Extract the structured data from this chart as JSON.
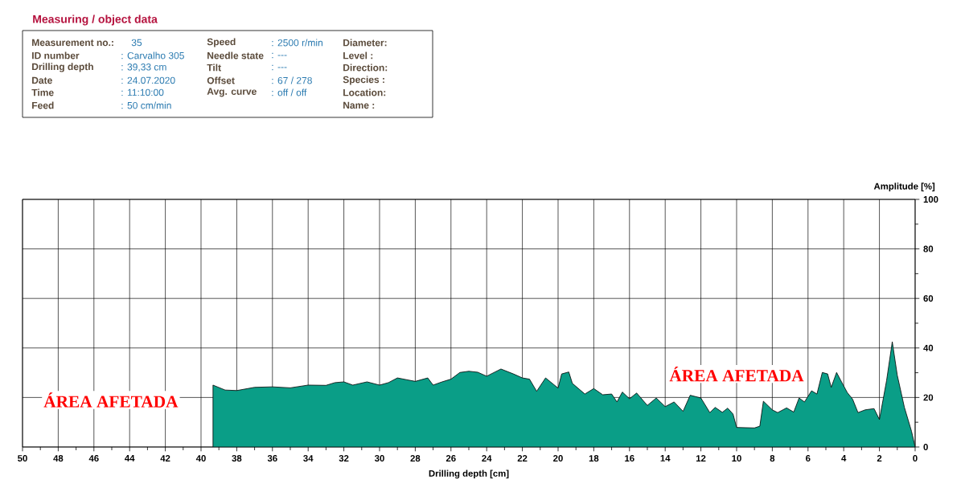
{
  "chart_data": {
    "type": "area",
    "title": "Measuring / object data",
    "xlabel": "Drilling depth [cm]",
    "ylabel": "Amplitude [%]",
    "x": [
      39.33,
      38.65,
      38,
      37,
      36,
      35,
      34,
      33,
      32.5,
      32,
      31.5,
      30.7,
      30,
      29.5,
      29,
      28,
      27.3,
      27,
      26.5,
      26,
      25.5,
      25,
      24.5,
      24,
      23.2,
      22.5,
      22,
      21.6,
      21.2,
      20.7,
      20,
      19.8,
      19.4,
      19.2,
      18.5,
      18,
      17.5,
      17,
      16.7,
      16.4,
      16,
      15.6,
      15,
      14.5,
      14,
      13.5,
      13,
      12.6,
      12,
      11.5,
      11.2,
      10.8,
      10.5,
      10.2,
      10,
      9,
      8.7,
      8.5,
      8,
      7.7,
      7.2,
      6.8,
      6.5,
      6.2,
      5.8,
      5.5,
      5.2,
      4.9,
      4.7,
      4.4,
      4.1,
      3.8,
      3.5,
      3.2,
      2.8,
      2.3,
      2,
      1.6,
      1.28,
      1,
      0.6,
      0.2,
      0
    ],
    "values": [
      25,
      23,
      22.8,
      24.1,
      24.3,
      23.9,
      25,
      24.9,
      26,
      26.3,
      25,
      26.3,
      25,
      26,
      27.9,
      26.5,
      27.9,
      25,
      26.3,
      27.4,
      30.1,
      30.6,
      30.2,
      28.6,
      31.5,
      29.5,
      27.9,
      27.4,
      22.5,
      27.9,
      23.8,
      29.5,
      30.3,
      25.7,
      21.4,
      23.6,
      21.1,
      21.4,
      18.2,
      22.2,
      19.5,
      21.8,
      16.8,
      19.8,
      16.3,
      18.2,
      14.4,
      20.9,
      19.8,
      13.9,
      16,
      14,
      15.7,
      13.3,
      7.9,
      7.7,
      8.4,
      18.5,
      15,
      13.9,
      15.8,
      14.1,
      19.8,
      18.2,
      22.7,
      21.4,
      30.1,
      29.5,
      24.1,
      30.1,
      26,
      22,
      19.3,
      13.9,
      15,
      15.5,
      11.1,
      26.8,
      42.5,
      29,
      16,
      6.3,
      0
    ],
    "color": "#0a9e87",
    "xlim": [
      50,
      0
    ],
    "xticks": [
      0,
      2,
      4,
      6,
      8,
      10,
      12,
      14,
      16,
      18,
      20,
      22,
      24,
      26,
      28,
      30,
      32,
      34,
      36,
      38,
      40,
      42,
      44,
      46,
      48,
      50,
      {
        "value": 1,
        "label": null
      },
      {
        "value": 3,
        "label": null
      },
      {
        "value": 5,
        "label": null
      },
      {
        "value": 7,
        "label": null
      },
      {
        "value": 9,
        "label": null
      },
      {
        "value": 11,
        "label": null
      },
      {
        "value": 13,
        "label": null
      },
      {
        "value": 15,
        "label": null
      },
      {
        "value": 17,
        "label": null
      },
      {
        "value": 19,
        "label": null
      },
      {
        "value": 21,
        "label": null
      },
      {
        "value": 23,
        "label": null
      },
      {
        "value": 25,
        "label": null
      },
      {
        "value": 27,
        "label": null
      },
      {
        "value": 29,
        "label": null
      },
      {
        "value": 31,
        "label": null
      },
      {
        "value": 33,
        "label": null
      },
      {
        "value": 35,
        "label": null
      },
      {
        "value": 37,
        "label": null
      },
      {
        "value": 39,
        "label": null
      },
      {
        "value": 41,
        "label": null
      },
      {
        "value": 43,
        "label": null
      },
      {
        "value": 45,
        "label": null
      },
      {
        "value": 47,
        "label": null
      },
      {
        "value": 49,
        "label": null
      }
    ],
    "ylim": [
      0,
      100
    ],
    "yticks": [
      0,
      20,
      40,
      60,
      80,
      100,
      {
        "value": 10,
        "label": null
      },
      {
        "value": 30,
        "label": null
      },
      {
        "value": 50,
        "label": null
      },
      {
        "value": 70,
        "label": null
      },
      {
        "value": 90,
        "label": null
      }
    ],
    "grid": true,
    "annotations": [
      "Measurement no.:",
      "35",
      "ID number",
      ": Carvalho 305",
      "Drilling depth",
      ": 39,33 cm",
      "Date",
      ": 24.07.2020",
      "Time",
      ": 11:10:00",
      "Feed",
      ": 50 cm/min",
      "Speed",
      ": 2500 r/min",
      "Needle state",
      ": ---",
      "Tilt",
      ": ---",
      "Offset",
      ": 67 / 278",
      "Avg. curve",
      ": off / off",
      "Diameter:",
      "Level :",
      "Direction:",
      "Species :",
      "Location:",
      "Name :",
      "ÁREA AFETADA",
      "ÁREA AFETADA"
    ]
  }
}
